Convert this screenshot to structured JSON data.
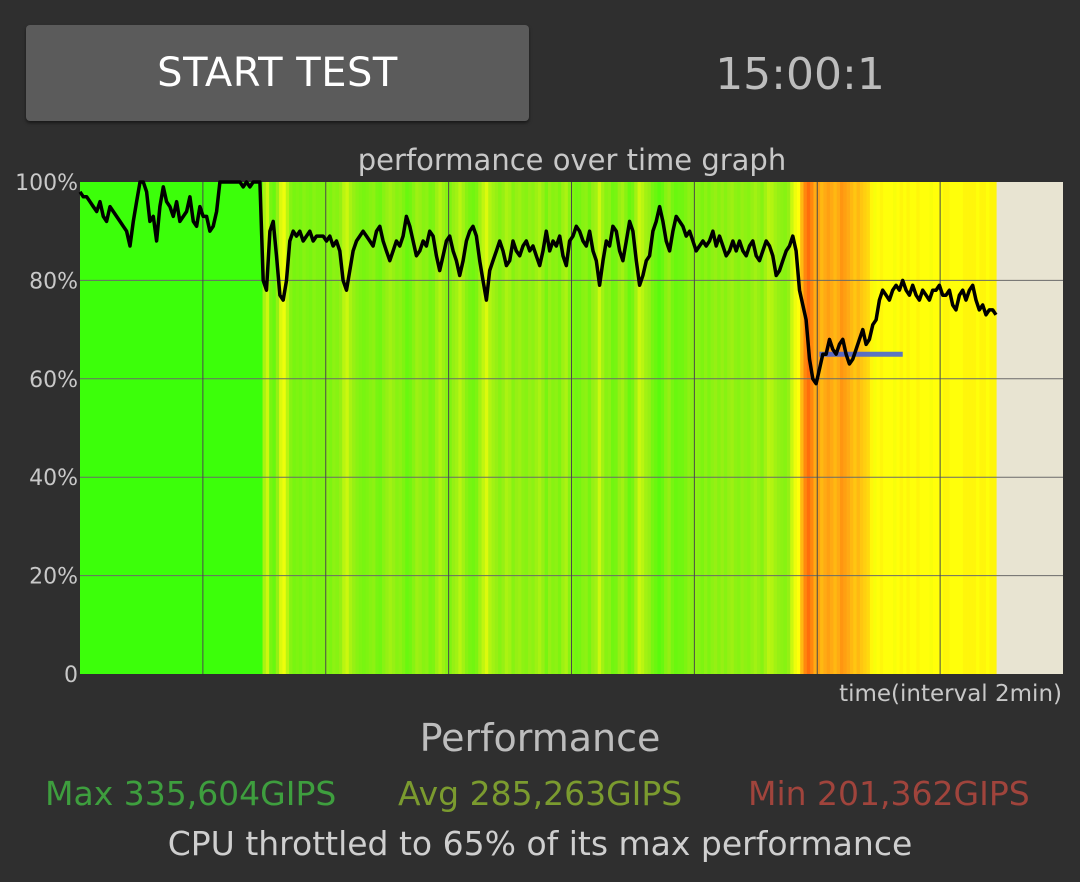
{
  "header": {
    "start_button_label": "START TEST",
    "timer": "15:00:1"
  },
  "chart_data": {
    "type": "line",
    "title": "performance over time graph",
    "xlabel": "time(interval 2min)",
    "ylabel": "",
    "ylim": [
      0,
      100
    ],
    "y_ticks": [
      "0",
      "20%",
      "40%",
      "60%",
      "80%",
      "100%"
    ],
    "x_interval_minutes": 2,
    "colors": {
      "plot_background": "#e8e4d2",
      "line": "#000000",
      "throttle_marker": "#3f5fe0",
      "grid": "#6a6a6a"
    },
    "series": [
      {
        "values": [
          98,
          97,
          97,
          96,
          95,
          94,
          96,
          93,
          92,
          95,
          94,
          93,
          92,
          91,
          90,
          87,
          92,
          96,
          100,
          100,
          98,
          92,
          93,
          88,
          95,
          99,
          96,
          95,
          93,
          96,
          92,
          93,
          94,
          97,
          92,
          91,
          95,
          93,
          93,
          90,
          91,
          94,
          100,
          100,
          100,
          100,
          100,
          100,
          100,
          99,
          100,
          99,
          100,
          100,
          100,
          80,
          78,
          90,
          92,
          85,
          77,
          76,
          80,
          88,
          90,
          89,
          90,
          88,
          89,
          90,
          88,
          89,
          89,
          89,
          88,
          89,
          87,
          88,
          86,
          80,
          78,
          82,
          86,
          88,
          89,
          90,
          89,
          88,
          87,
          90,
          91,
          88,
          86,
          84,
          86,
          88,
          87,
          89,
          93,
          91,
          88,
          85,
          86,
          88,
          87,
          90,
          89,
          85,
          82,
          85,
          88,
          89,
          86,
          84,
          81,
          84,
          88,
          90,
          91,
          89,
          84,
          80,
          76,
          82,
          84,
          86,
          88,
          86,
          83,
          84,
          88,
          86,
          85,
          87,
          88,
          86,
          87,
          85,
          83,
          86,
          90,
          86,
          88,
          87,
          89,
          85,
          83,
          88,
          89,
          91,
          90,
          88,
          87,
          90,
          86,
          84,
          79,
          84,
          88,
          87,
          91,
          90,
          86,
          84,
          88,
          92,
          90,
          84,
          79,
          81,
          84,
          85,
          90,
          92,
          95,
          92,
          88,
          86,
          90,
          93,
          92,
          91,
          89,
          90,
          88,
          86,
          87,
          88,
          87,
          88,
          90,
          87,
          89,
          87,
          85,
          86,
          88,
          86,
          88,
          86,
          85,
          87,
          88,
          85,
          84,
          86,
          88,
          87,
          85,
          81,
          82,
          84,
          86,
          87,
          89,
          86,
          78,
          75,
          72,
          64,
          60,
          59,
          62,
          65,
          65,
          68,
          66,
          65,
          67,
          68,
          65,
          63,
          64,
          66,
          68,
          70,
          67,
          68,
          71,
          72,
          76,
          78,
          77,
          76,
          78,
          79,
          78,
          80,
          78,
          77,
          79,
          77,
          76,
          78,
          77,
          76,
          78,
          78,
          79,
          77,
          77,
          78,
          75,
          74,
          77,
          78,
          76,
          78,
          79,
          76,
          74,
          75,
          73,
          74,
          74,
          73
        ]
      }
    ],
    "column_heat": [
      0.0,
      0.0,
      0.0,
      0.0,
      0.0,
      0.0,
      0.0,
      0.0,
      0.0,
      0.0,
      0.0,
      0.0,
      0.0,
      0.0,
      0.0,
      0.0,
      0.0,
      0.0,
      0.0,
      0.0,
      0.0,
      0.0,
      0.0,
      0.0,
      0.0,
      0.0,
      0.0,
      0.0,
      0.0,
      0.0,
      0.0,
      0.0,
      0.0,
      0.0,
      0.0,
      0.0,
      0.0,
      0.0,
      0.0,
      0.0,
      0.0,
      0.0,
      0.0,
      0.0,
      0.0,
      0.0,
      0.0,
      0.0,
      0.0,
      0.0,
      0.0,
      0.0,
      0.0,
      0.0,
      0.0,
      0.35,
      0.45,
      0.2,
      0.15,
      0.3,
      0.5,
      0.55,
      0.4,
      0.25,
      0.2,
      0.22,
      0.2,
      0.25,
      0.22,
      0.2,
      0.25,
      0.22,
      0.22,
      0.22,
      0.25,
      0.22,
      0.27,
      0.25,
      0.3,
      0.4,
      0.45,
      0.35,
      0.3,
      0.25,
      0.22,
      0.2,
      0.22,
      0.25,
      0.27,
      0.2,
      0.18,
      0.25,
      0.3,
      0.33,
      0.3,
      0.25,
      0.27,
      0.22,
      0.15,
      0.18,
      0.25,
      0.32,
      0.3,
      0.25,
      0.27,
      0.2,
      0.22,
      0.32,
      0.38,
      0.32,
      0.25,
      0.22,
      0.3,
      0.33,
      0.4,
      0.33,
      0.25,
      0.2,
      0.18,
      0.22,
      0.33,
      0.42,
      0.5,
      0.38,
      0.33,
      0.3,
      0.25,
      0.3,
      0.36,
      0.33,
      0.25,
      0.3,
      0.32,
      0.27,
      0.25,
      0.3,
      0.27,
      0.32,
      0.36,
      0.3,
      0.2,
      0.3,
      0.25,
      0.27,
      0.22,
      0.32,
      0.36,
      0.25,
      0.22,
      0.18,
      0.2,
      0.25,
      0.27,
      0.2,
      0.3,
      0.33,
      0.45,
      0.33,
      0.25,
      0.27,
      0.18,
      0.2,
      0.3,
      0.33,
      0.25,
      0.15,
      0.2,
      0.33,
      0.45,
      0.4,
      0.33,
      0.3,
      0.2,
      0.15,
      0.1,
      0.15,
      0.25,
      0.3,
      0.2,
      0.15,
      0.17,
      0.18,
      0.22,
      0.27,
      0.25,
      0.27,
      0.25,
      0.22,
      0.27,
      0.22,
      0.27,
      0.3,
      0.25,
      0.3,
      0.25,
      0.3,
      0.32,
      0.27,
      0.25,
      0.3,
      0.27,
      0.25,
      0.3,
      0.33,
      0.3,
      0.25,
      0.33,
      0.4,
      0.38,
      0.33,
      0.3,
      0.27,
      0.25,
      0.3,
      0.45,
      0.55,
      0.6,
      0.75,
      0.85,
      0.9,
      0.85,
      0.78,
      0.8,
      0.75,
      0.78,
      0.8,
      0.78,
      0.75,
      0.78,
      0.82,
      0.8,
      0.78,
      0.75,
      0.72,
      0.75,
      0.72,
      0.7,
      0.68,
      0.62,
      0.58,
      0.6,
      0.62,
      0.6,
      0.6,
      0.6,
      0.58,
      0.6,
      0.62,
      0.6,
      0.62,
      0.6,
      0.6,
      0.62,
      0.6,
      0.6,
      0.6,
      0.58,
      0.6,
      0.6,
      0.6,
      0.62,
      0.62,
      0.6,
      0.6,
      0.6,
      0.6,
      0.62,
      0.62,
      0.62,
      0.62,
      0.6,
      0.62,
      0.62,
      0.6,
      0.62,
      0.62
    ],
    "throttle_level": 65
  },
  "summary": {
    "title": "Performance",
    "max": "Max 335,604GIPS",
    "avg": "Avg 285,263GIPS",
    "min": "Min 201,362GIPS",
    "throttle_message": "CPU throttled to 65% of its max performance"
  }
}
